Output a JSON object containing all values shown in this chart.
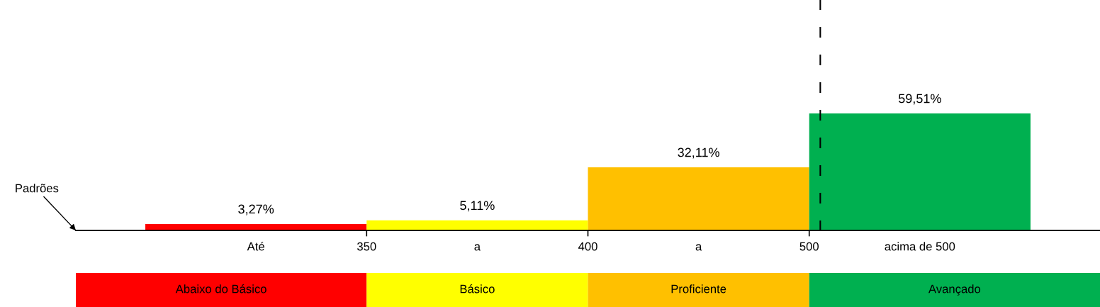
{
  "chart_data": {
    "type": "bar",
    "categories": [
      "Abaixo do Básico",
      "Básico",
      "Proficiente",
      "Avançado"
    ],
    "values": [
      3.27,
      5.11,
      32.11,
      59.51
    ],
    "colors": [
      "#ff0000",
      "#ffff00",
      "#ffc000",
      "#00b050"
    ],
    "value_labels": [
      "3,27%",
      "5,11%",
      "32,11%",
      "59,51%"
    ],
    "annotations": [
      "Padrões",
      "Até",
      "350",
      "a",
      "400",
      "a",
      "500",
      "acima de 500"
    ]
  }
}
